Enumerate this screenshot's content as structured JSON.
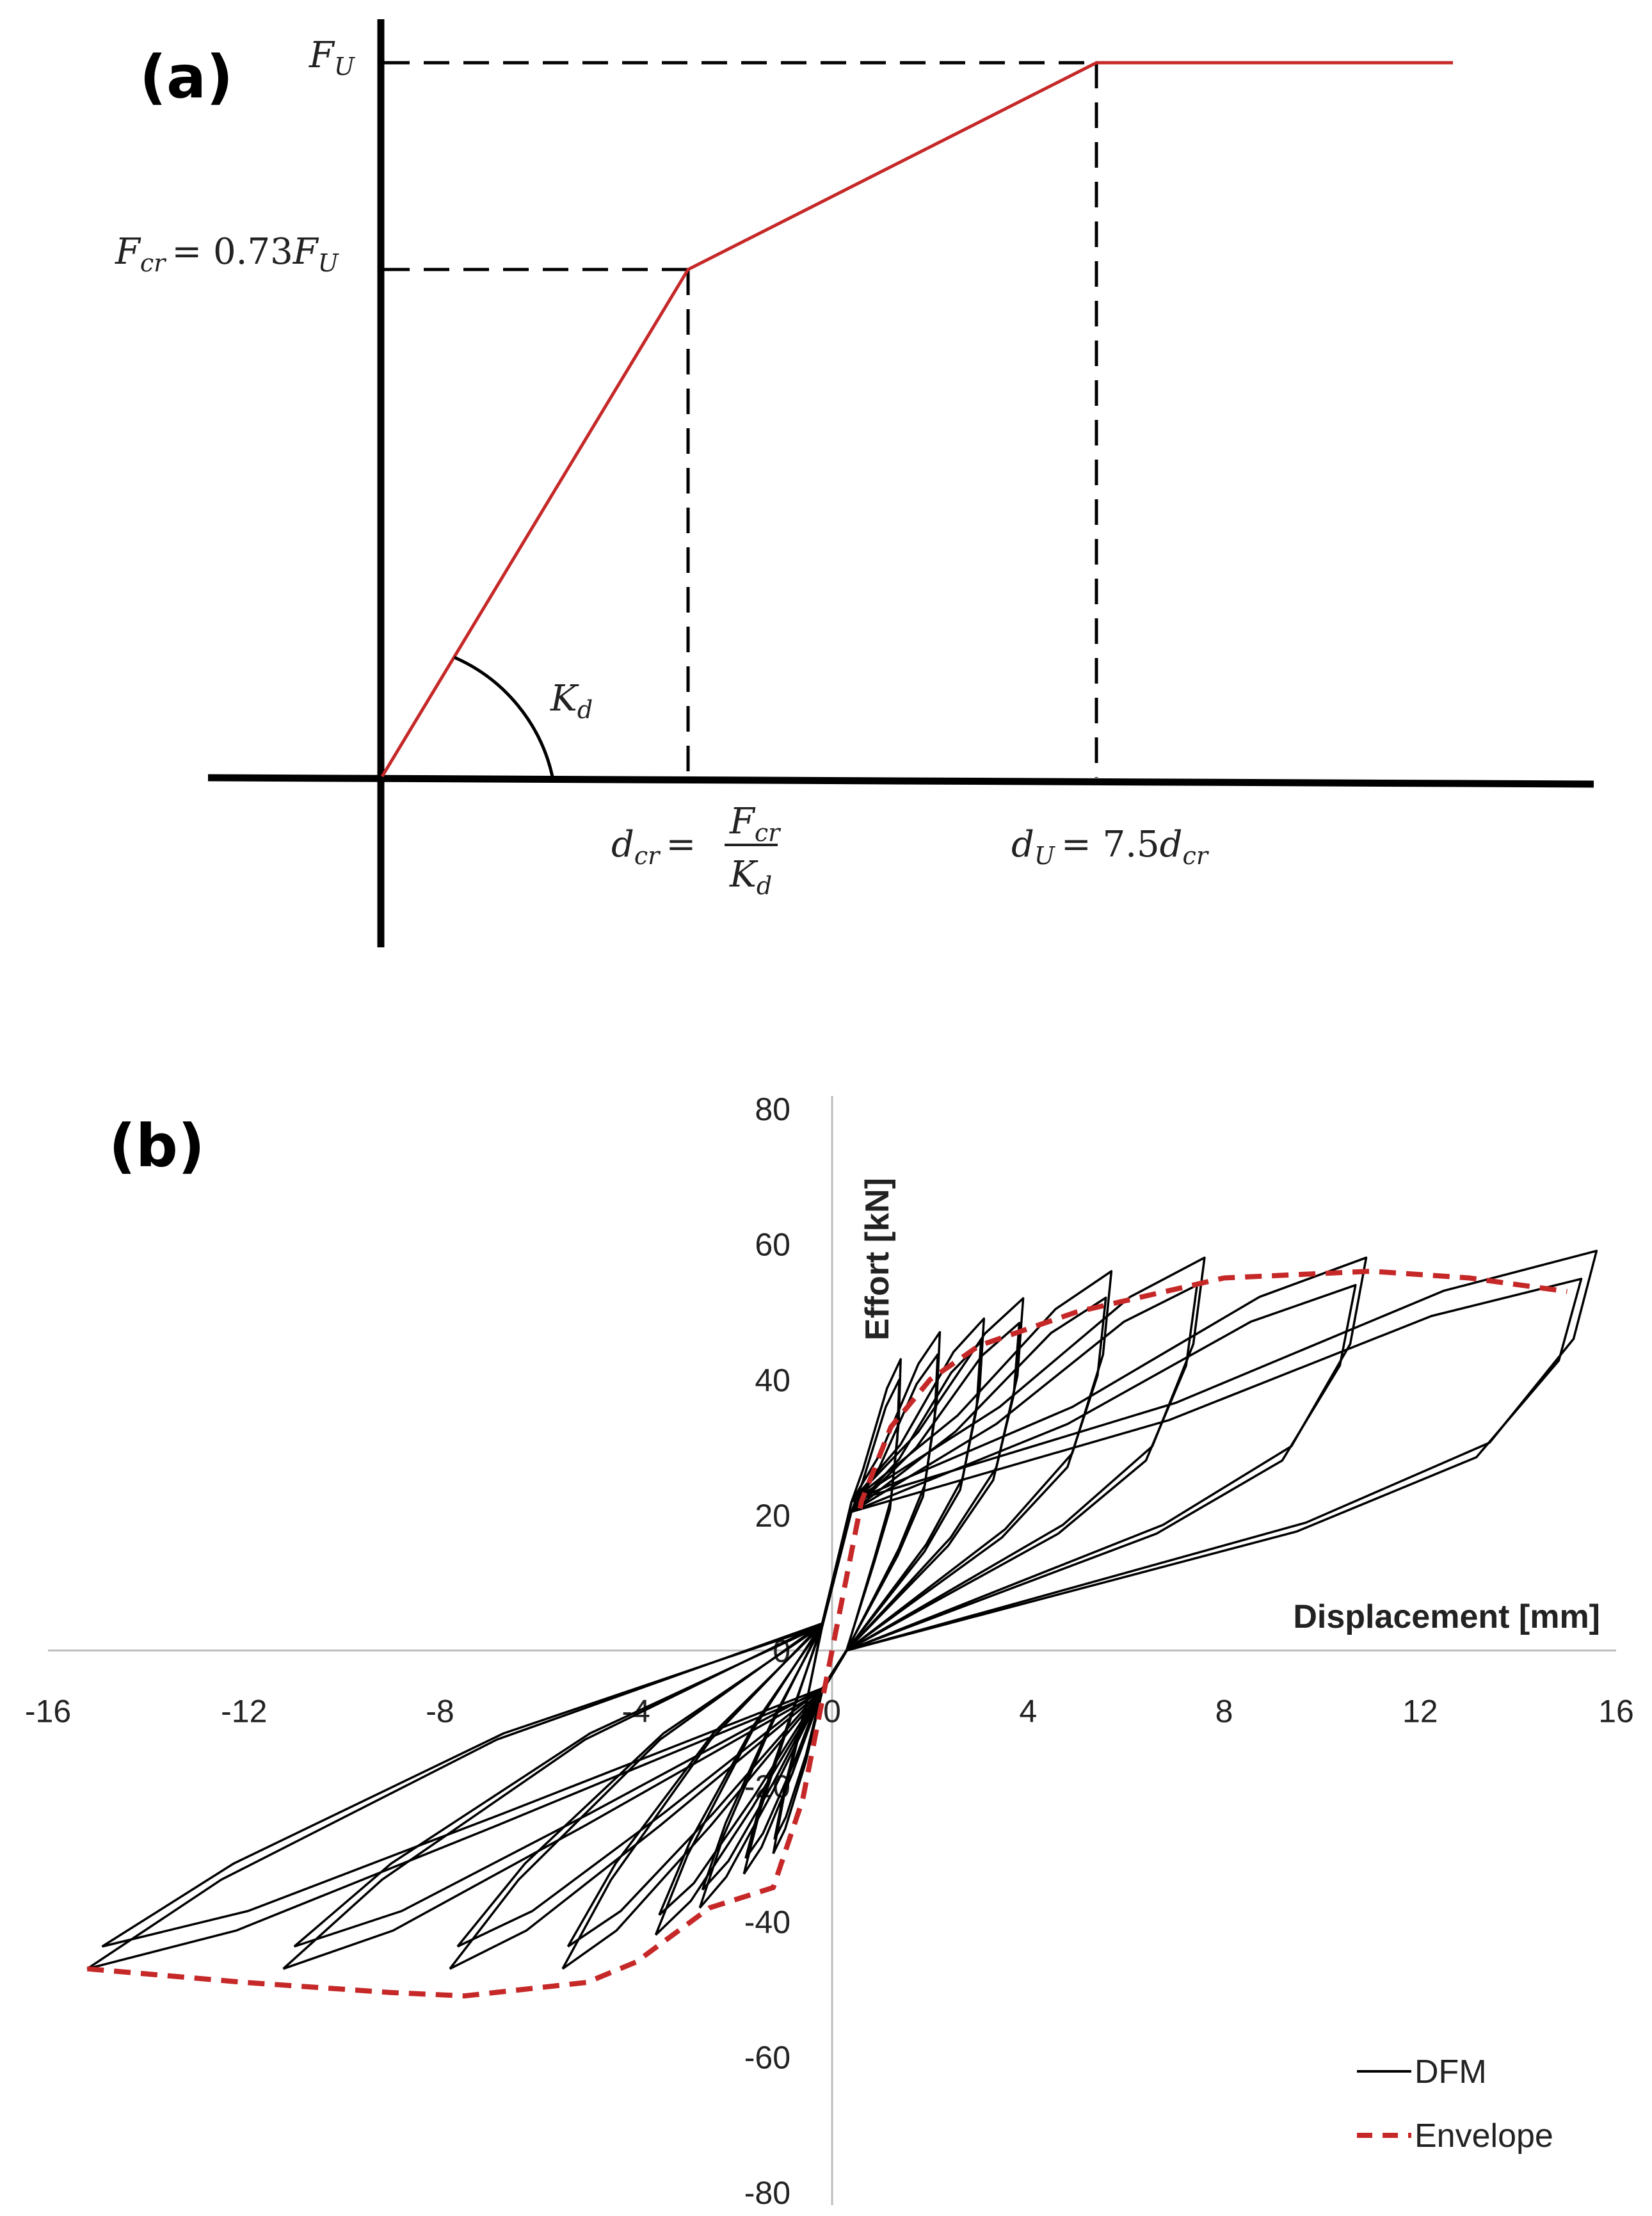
{
  "panel_a": {
    "label": "(a)",
    "label_fu": "F",
    "label_fu_sub": "U",
    "label_fcr_lhs": "F",
    "label_fcr_lhs_sub": "cr",
    "label_fcr_rhs_num": "= 0.73",
    "label_fcr_rhs": "F",
    "label_fcr_rhs_sub": "U",
    "label_kd": "K",
    "label_kd_sub": "d",
    "label_dcr": "d",
    "label_dcr_sub": "cr",
    "label_dcr_eq": "=",
    "label_dcr_num": "F",
    "label_dcr_num_sub": "cr",
    "label_dcr_den": "K",
    "label_dcr_den_sub": "d",
    "label_du": "d",
    "label_du_sub": "U",
    "label_du_eq": "= 7.5",
    "label_du_rhs": "d",
    "label_du_rhs_sub": "cr",
    "colors": {
      "curve": "#c62828",
      "axis": "#000000"
    }
  },
  "chart_data": [
    {
      "type": "line",
      "panel": "b",
      "label": "(b)",
      "xlabel": "Displacement [mm]",
      "ylabel": "Effort [kN]",
      "xlim": [
        -16,
        16
      ],
      "ylim": [
        -80,
        80
      ],
      "x_ticks": [
        "-16",
        "-12",
        "-8",
        "-4",
        "0",
        "4",
        "8",
        "12",
        "16"
      ],
      "y_ticks": [
        "80",
        "60",
        "40",
        "20",
        "-40",
        "-60",
        "-80"
      ],
      "legend_position": "bottom-right",
      "series": [
        {
          "name": "DFM",
          "color": "#000000",
          "style": "solid",
          "loops": [
            {
              "pos": [
                1.4,
                43
              ],
              "neg": [
                -1.2,
                -30
              ]
            },
            {
              "pos": [
                2.2,
                47
              ],
              "neg": [
                -1.8,
                -33
              ]
            },
            {
              "pos": [
                3.1,
                49
              ],
              "neg": [
                -2.7,
                -38
              ]
            },
            {
              "pos": [
                3.9,
                52
              ],
              "neg": [
                -3.6,
                -42
              ]
            },
            {
              "pos": [
                5.7,
                56
              ],
              "neg": [
                -5.5,
                -47
              ]
            },
            {
              "pos": [
                7.6,
                58
              ],
              "neg": [
                -7.8,
                -47
              ]
            },
            {
              "pos": [
                10.9,
                58
              ],
              "neg": [
                -11.2,
                -47
              ]
            },
            {
              "pos": [
                15.6,
                59
              ],
              "neg": [
                -15.2,
                -47
              ]
            }
          ]
        },
        {
          "name": "Envelope",
          "color": "#c62828",
          "style": "dashed",
          "x": [
            -15.2,
            -12,
            -9,
            -7.5,
            -5,
            -4,
            -2.5,
            -1.2,
            -0.6,
            0,
            0.6,
            1.2,
            2,
            3,
            5,
            8,
            11,
            13,
            15
          ],
          "y": [
            -47,
            -49,
            -50.5,
            -51,
            -49,
            -46,
            -38,
            -35,
            -22,
            0,
            22,
            33,
            40,
            45,
            50,
            55,
            56,
            55,
            53
          ]
        }
      ]
    }
  ]
}
